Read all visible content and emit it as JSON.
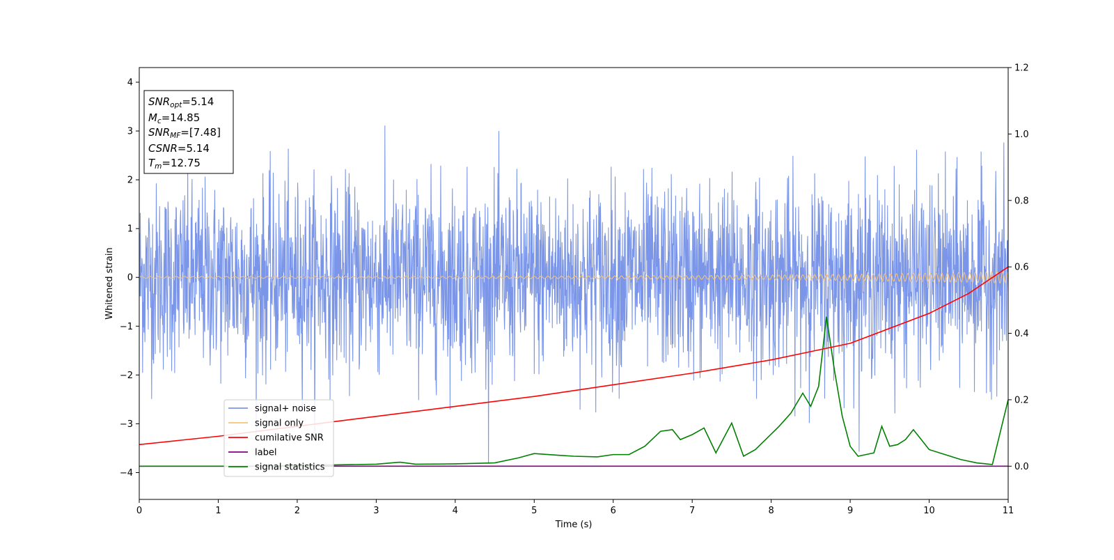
{
  "chart_data": {
    "type": "line",
    "xlabel": "Time (s)",
    "ylabel": "Whitened strain",
    "xlim": [
      0,
      11
    ],
    "ylim": [
      -4.55,
      4.3
    ],
    "y2lim": [
      -0.1,
      1.2
    ],
    "x_ticks": [
      0,
      1,
      2,
      3,
      4,
      5,
      6,
      7,
      8,
      9,
      10,
      11
    ],
    "y_ticks": [
      4,
      3,
      2,
      1,
      0,
      -1,
      -2,
      -3,
      -4
    ],
    "y2_ticks": [
      1.2,
      1.0,
      0.8,
      0.6,
      0.4,
      0.2,
      0.0
    ],
    "tick_labels": {
      "x": [
        "0",
        "1",
        "2",
        "3",
        "4",
        "5",
        "6",
        "7",
        "8",
        "9",
        "10",
        "11"
      ],
      "y": [
        "4",
        "3",
        "2",
        "1",
        "0",
        "−1",
        "−2",
        "−3",
        "−4"
      ],
      "y2": [
        "1.2",
        "1.0",
        "0.8",
        "0.6",
        "0.4",
        "0.2",
        "0.0"
      ]
    },
    "grid": false,
    "legend_position": "lower-left",
    "info_box": {
      "lines": [
        {
          "sym": "SNR",
          "sub": "opt",
          "val": "=5.14"
        },
        {
          "sym": "M",
          "sub": "c",
          "val": "=14.85"
        },
        {
          "sym": "SNR",
          "sub": "MF",
          "val": "=[7.48]"
        },
        {
          "sym": "CSNR",
          "sub": "",
          "val": "=5.14"
        },
        {
          "sym": "T",
          "sub": "m",
          "val": "=12.75"
        }
      ]
    },
    "series": [
      {
        "name": "signal+ noise",
        "axis": "left",
        "color": "#7b96e8",
        "noise_sigma": 0.95,
        "noise_range": [
          -4.2,
          3.9
        ]
      },
      {
        "name": "signal only",
        "axis": "left",
        "color": "#f5c27a",
        "amplitude_start": 0.02,
        "amplitude_end": 0.12
      },
      {
        "name": "cumilative SNR",
        "axis": "right",
        "color": "#ff0000",
        "x": [
          0,
          1,
          2,
          3,
          4,
          5,
          6,
          7,
          8,
          9,
          10,
          10.5,
          11
        ],
        "y": [
          0.065,
          0.09,
          0.12,
          0.15,
          0.18,
          0.21,
          0.245,
          0.28,
          0.32,
          0.37,
          0.46,
          0.52,
          0.6
        ]
      },
      {
        "name": "label",
        "axis": "right",
        "color": "#800080",
        "x": [
          0,
          11
        ],
        "y": [
          0.0,
          0.0
        ]
      },
      {
        "name": "signal statistics",
        "axis": "right",
        "color": "#008000",
        "x": [
          0,
          0.5,
          1,
          1.5,
          2,
          2.5,
          3,
          3.3,
          3.5,
          4,
          4.5,
          4.8,
          5,
          5.3,
          5.5,
          5.8,
          6,
          6.2,
          6.4,
          6.6,
          6.75,
          6.85,
          7.0,
          7.15,
          7.3,
          7.5,
          7.65,
          7.8,
          7.95,
          8.1,
          8.25,
          8.4,
          8.5,
          8.6,
          8.7,
          8.8,
          8.9,
          9.0,
          9.1,
          9.2,
          9.3,
          9.4,
          9.5,
          9.6,
          9.7,
          9.8,
          9.9,
          10.0,
          10.2,
          10.4,
          10.6,
          10.8,
          11.0
        ],
        "y": [
          0.0,
          0.0,
          0.0,
          0.0,
          0.002,
          0.004,
          0.006,
          0.012,
          0.006,
          0.007,
          0.01,
          0.025,
          0.038,
          0.033,
          0.03,
          0.028,
          0.035,
          0.035,
          0.06,
          0.105,
          0.11,
          0.08,
          0.095,
          0.115,
          0.04,
          0.13,
          0.03,
          0.05,
          0.085,
          0.12,
          0.16,
          0.22,
          0.18,
          0.24,
          0.45,
          0.29,
          0.15,
          0.06,
          0.03,
          0.035,
          0.04,
          0.12,
          0.06,
          0.065,
          0.08,
          0.11,
          0.08,
          0.05,
          0.035,
          0.02,
          0.01,
          0.005,
          0.2
        ]
      }
    ]
  }
}
